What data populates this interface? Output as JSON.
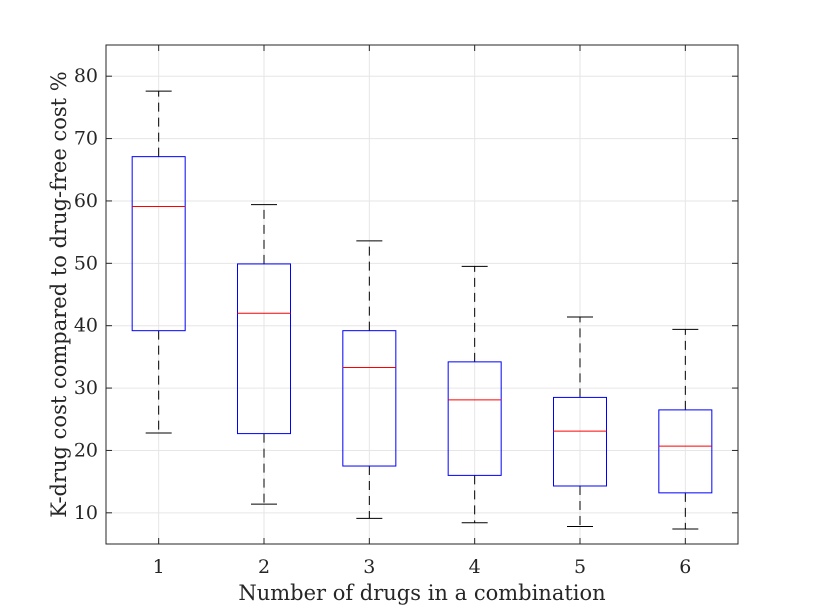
{
  "chart_data": {
    "type": "box",
    "xlabel": "Number of drugs in a combination",
    "ylabel": "K-drug cost compared to drug-free cost %",
    "categories": [
      "1",
      "2",
      "3",
      "4",
      "5",
      "6"
    ],
    "boxes": [
      {
        "category": "1",
        "whisker_low": 22.8,
        "q1": 39.2,
        "median": 59.1,
        "q3": 67.1,
        "whisker_high": 77.6
      },
      {
        "category": "2",
        "whisker_low": 11.4,
        "q1": 22.7,
        "median": 42.0,
        "q3": 49.9,
        "whisker_high": 59.4
      },
      {
        "category": "3",
        "whisker_low": 9.1,
        "q1": 17.5,
        "median": 33.3,
        "q3": 39.2,
        "whisker_high": 53.6
      },
      {
        "category": "4",
        "whisker_low": 8.4,
        "q1": 16.0,
        "median": 28.1,
        "q3": 34.2,
        "whisker_high": 49.5
      },
      {
        "category": "5",
        "whisker_low": 7.8,
        "q1": 14.3,
        "median": 23.1,
        "q3": 28.5,
        "whisker_high": 41.4
      },
      {
        "category": "6",
        "whisker_low": 7.4,
        "q1": 13.2,
        "median": 20.7,
        "q3": 26.5,
        "whisker_high": 39.4
      }
    ],
    "yticks": [
      10,
      20,
      30,
      40,
      50,
      60,
      70,
      80
    ],
    "ylim": [
      5,
      85
    ],
    "xlim": [
      0.5,
      6.5
    ],
    "grid": true,
    "colors": {
      "box": "#0000ff",
      "median": "#ff0000",
      "whisker": "#000000",
      "grid": "#e6e6e6",
      "axes": "#262626"
    }
  }
}
